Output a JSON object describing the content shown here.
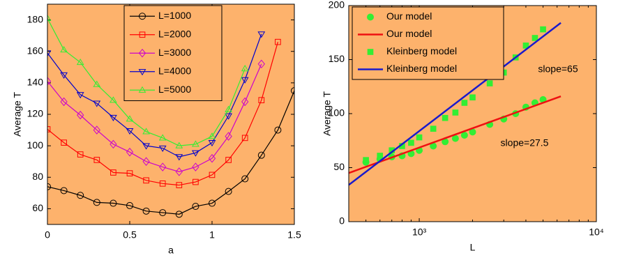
{
  "chart_data": [
    {
      "type": "line",
      "xlabel": "a",
      "ylabel": "Average T",
      "x": [
        0,
        0.1,
        0.2,
        0.3,
        0.4,
        0.5,
        0.6,
        0.7,
        0.8,
        0.9,
        1,
        1.1,
        1.2,
        1.3,
        1.4,
        1.5
      ],
      "xlim": [
        0,
        1.5
      ],
      "xticks": [
        0,
        0.5,
        1,
        1.5
      ],
      "ylim": [
        50,
        190
      ],
      "yticks": [
        60,
        80,
        100,
        120,
        140,
        160,
        180
      ],
      "background": "#fdb26c",
      "legend": "upper center",
      "series": [
        {
          "name": "L=1000",
          "color": "#000000",
          "marker": "circle",
          "values": [
            74,
            71.5,
            68.5,
            64,
            63.5,
            62,
            58.5,
            57.5,
            56.5,
            61.5,
            63.5,
            71,
            79,
            94,
            110,
            135
          ]
        },
        {
          "name": "L=2000",
          "color": "#ff0000",
          "marker": "square",
          "values": [
            110.5,
            102,
            94.5,
            91,
            83,
            82.5,
            78,
            76,
            75,
            77,
            81.5,
            91,
            105,
            129,
            166,
            null
          ]
        },
        {
          "name": "L=3000",
          "color": "#cc00cc",
          "marker": "diamond",
          "values": [
            141,
            128,
            119.5,
            110,
            101,
            96,
            90,
            86.5,
            83.5,
            86.5,
            92,
            106,
            128,
            152,
            null,
            null
          ]
        },
        {
          "name": "L=4000",
          "color": "#0000cc",
          "marker": "triangle-down",
          "values": [
            159,
            145,
            132.5,
            127,
            118,
            109.5,
            100,
            98.5,
            93,
            95.5,
            102,
            119,
            142,
            171,
            null,
            null
          ]
        },
        {
          "name": "L=5000",
          "color": "#33ee33",
          "marker": "triangle-up",
          "values": [
            181,
            161,
            153,
            139,
            129,
            117,
            109,
            105,
            100,
            101,
            106,
            123,
            149,
            null,
            null,
            null
          ]
        }
      ]
    },
    {
      "type": "scatter",
      "xlabel": "L",
      "ylabel": "Average T",
      "xlog": true,
      "xlim": [
        400,
        10000
      ],
      "xticks": [
        {
          "value": 1000,
          "label": "10³"
        },
        {
          "value": 10000,
          "label": "10⁴"
        }
      ],
      "ylim": [
        0,
        200
      ],
      "yticks": [
        0,
        50,
        100,
        150,
        200
      ],
      "background": "#fdb26c",
      "legend": "upper left",
      "annotations": [
        "slope=65",
        "slope=27.5"
      ],
      "series": [
        {
          "name": "Our model",
          "kind": "scatter",
          "color": "#33ee33",
          "marker": "circle",
          "x": [
            500,
            600,
            700,
            800,
            900,
            1000,
            1200,
            1400,
            1600,
            1800,
            2000,
            2500,
            3000,
            3500,
            4000,
            4500,
            5000
          ],
          "values": [
            55,
            58,
            60,
            61,
            63,
            66,
            70,
            74,
            77,
            80,
            83,
            90,
            95,
            100,
            106,
            110,
            113
          ]
        },
        {
          "name": "Our model",
          "kind": "line",
          "color": "#ee1111",
          "x": [
            400,
            6300
          ],
          "values": [
            45,
            116
          ]
        },
        {
          "name": "Kleinberg model",
          "kind": "scatter",
          "color": "#33ee33",
          "marker": "square",
          "x": [
            500,
            600,
            700,
            800,
            900,
            1000,
            1200,
            1400,
            1600,
            1800,
            2000,
            2500,
            3000,
            3500,
            4000,
            4500,
            5000
          ],
          "values": [
            57,
            61,
            66,
            70,
            73,
            78,
            86,
            96,
            101,
            110,
            115,
            128,
            138,
            152,
            163,
            170,
            178
          ]
        },
        {
          "name": "Kleinberg model",
          "kind": "line",
          "color": "#1a1acc",
          "x": [
            400,
            6300
          ],
          "values": [
            34,
            184
          ]
        }
      ]
    }
  ]
}
